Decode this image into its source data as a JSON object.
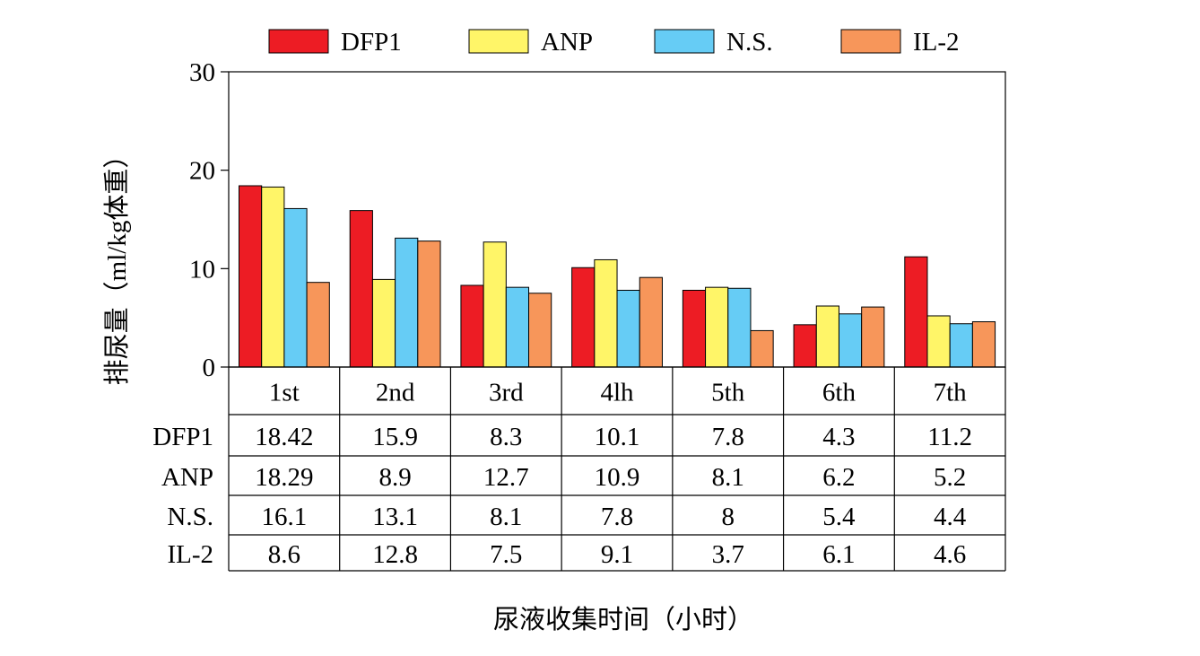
{
  "chart_data": {
    "type": "bar",
    "title": "",
    "xlabel": "尿液收集时间（小时）",
    "ylabel": "排尿量（ml/kg体重）",
    "ylim": [
      0,
      30
    ],
    "yticks": [
      0,
      10,
      20,
      30
    ],
    "categories": [
      "1st",
      "2nd",
      "3rd",
      "4lh",
      "5th",
      "6th",
      "7th"
    ],
    "series": [
      {
        "name": "DFP1",
        "color": "#ed1c24",
        "values": [
          18.42,
          15.9,
          8.3,
          10.1,
          7.8,
          4.3,
          11.2
        ],
        "labels": [
          "18.42",
          "15.9",
          "8.3",
          "10.1",
          "7.8",
          "4.3",
          "11.2"
        ]
      },
      {
        "name": "ANP",
        "color": "#fff568",
        "values": [
          18.29,
          8.9,
          12.7,
          10.9,
          8.1,
          6.2,
          5.2
        ],
        "labels": [
          "18.29",
          "8.9",
          "12.7",
          "10.9",
          "8.1",
          "6.2",
          "5.2"
        ]
      },
      {
        "name": "N.S.",
        "color": "#66ccf5",
        "values": [
          16.1,
          13.1,
          8.1,
          7.8,
          8,
          5.4,
          4.4
        ],
        "labels": [
          "16.1",
          "13.1",
          "8.1",
          "7.8",
          "8",
          "5.4",
          "4.4"
        ]
      },
      {
        "name": "IL-2",
        "color": "#f7965a",
        "values": [
          8.6,
          12.8,
          7.5,
          9.1,
          3.7,
          6.1,
          4.6
        ],
        "labels": [
          "8.6",
          "12.8",
          "7.5",
          "9.1",
          "3.7",
          "6.1",
          "4.6"
        ]
      }
    ],
    "grid": false,
    "legend": "top",
    "data_table": true
  }
}
